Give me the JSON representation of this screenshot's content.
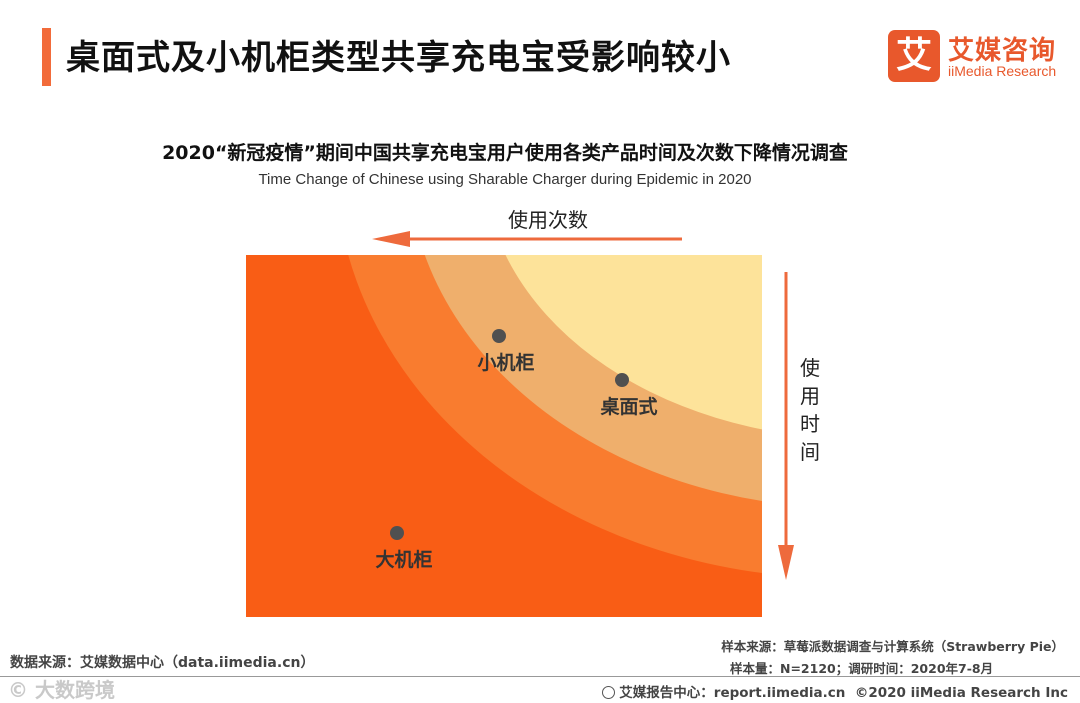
{
  "header": {
    "title": "桌面式及小机柜类型共享充电宝受影响较小",
    "logo_glyph": "艾",
    "logo_cn": "艾媒咨询",
    "logo_en": "iiMedia Research"
  },
  "chart_data": {
    "type": "diagram",
    "title": "2020“新冠疫情”期间中国共享充电宝用户使用各类产品时间及次数下降情况调查",
    "subtitle": "Time Change of Chinese using Sharable Charger during Epidemic in 2020",
    "x_arrow_label": "使用次数",
    "y_arrow_label": "使用时间",
    "zones": [
      {
        "color": "#f95d15"
      },
      {
        "color": "#f97c2f"
      },
      {
        "color": "#efaf6c"
      },
      {
        "color": "#fde39a"
      }
    ],
    "points": [
      {
        "label": "小机柜"
      },
      {
        "label": "桌面式"
      },
      {
        "label": "大机柜"
      }
    ]
  },
  "footer": {
    "source": "数据来源：艾媒数据中心（data.iimedia.cn）",
    "sample_source": "样本来源：草莓派数据调查与计算系统（Strawberry Pie）",
    "sample_size": "样本量：N=2120；调研时间：2020年7-8月",
    "report_center": "艾媒报告中心：report.iimedia.cn",
    "copyright": "©2020  iiMedia Research  Inc",
    "watermark": "©   大数跨境"
  },
  "colors": {
    "accent": "#f26b3a",
    "arrow": "#ee6a3c",
    "dot": "#505050"
  }
}
